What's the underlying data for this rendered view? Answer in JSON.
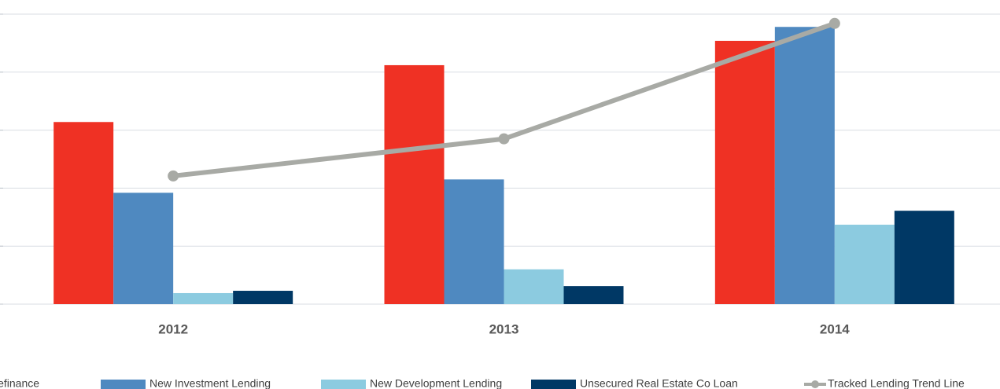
{
  "chart_data": {
    "type": "bar",
    "categories": [
      "2012",
      "2013",
      "2014"
    ],
    "series": [
      {
        "name": "Refinance",
        "color": "#ef3124",
        "values": [
          3.14,
          4.12,
          4.54
        ]
      },
      {
        "name": "New Investment Lending",
        "color": "#4f89c0",
        "values": [
          1.92,
          2.15,
          4.78
        ]
      },
      {
        "name": "New Development Lending",
        "color": "#8ccbe0",
        "values": [
          0.19,
          0.6,
          1.37
        ]
      },
      {
        "name": "Unsecured Real Estate Co Loan",
        "color": "#003865",
        "values": [
          0.23,
          0.31,
          1.61
        ]
      },
      {
        "name": "Tracked Lending Trend Line",
        "type": "line",
        "color": "#a8aaa5",
        "values": [
          2.21,
          2.85,
          4.84
        ]
      }
    ],
    "ylim": [
      0,
      5
    ],
    "yticks": [
      0,
      1,
      2,
      3,
      4,
      5
    ],
    "grid": true,
    "legend": "bottom"
  }
}
